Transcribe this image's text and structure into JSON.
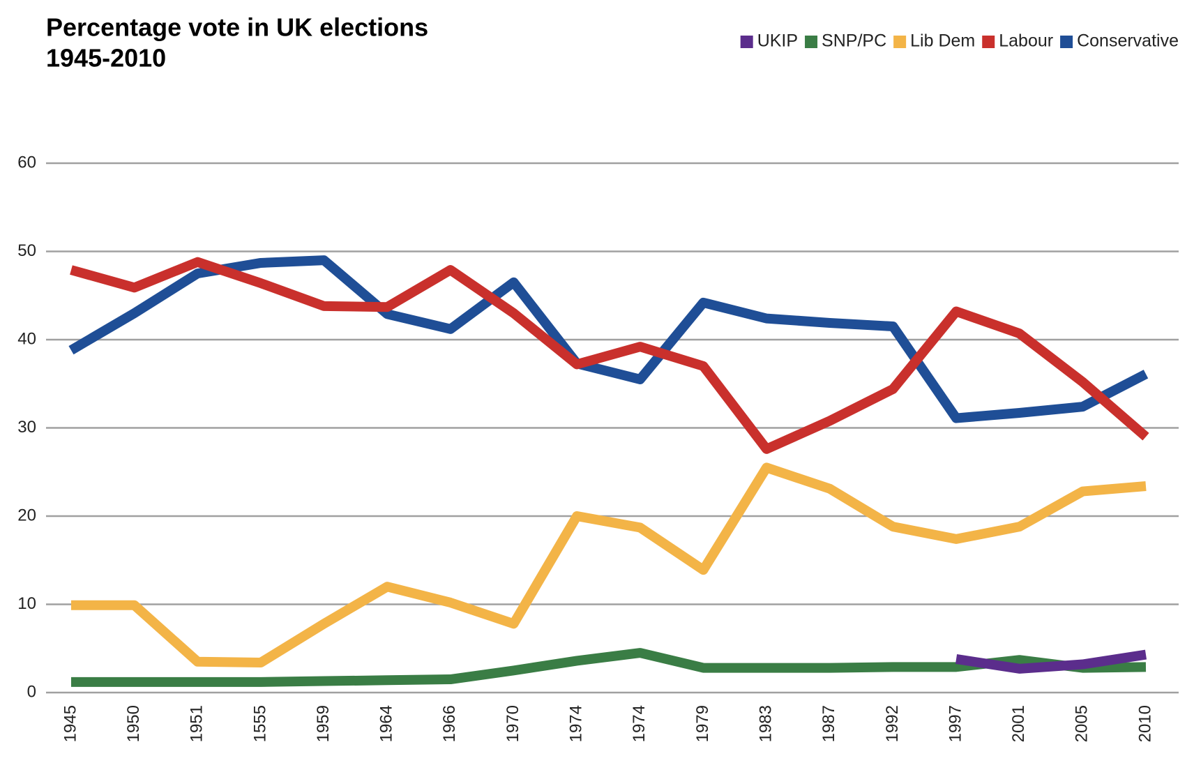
{
  "chart_data": {
    "type": "line",
    "title": "Percentage vote in UK elections",
    "subtitle": "1945-2010",
    "categories": [
      "1945",
      "1950",
      "1951",
      "1555",
      "1959",
      "1964",
      "1966",
      "1970",
      "1974",
      "1974",
      "1979",
      "1983",
      "1987",
      "1992",
      "1997",
      "2001",
      "2005",
      "2010"
    ],
    "series": [
      {
        "name": "UKIP",
        "color": "#5b2d8c",
        "values": [
          null,
          null,
          null,
          null,
          null,
          null,
          null,
          null,
          null,
          null,
          null,
          null,
          null,
          null,
          3.8,
          2.7,
          3.2,
          4.3
        ]
      },
      {
        "name": "SNP/PC",
        "color": "#3a7d45",
        "values": [
          1.2,
          1.2,
          1.2,
          1.2,
          1.3,
          1.4,
          1.5,
          2.5,
          3.6,
          4.5,
          2.8,
          2.8,
          2.8,
          2.9,
          2.9,
          3.7,
          2.8,
          2.9
        ]
      },
      {
        "name": "Lib Dem",
        "color": "#f3b447",
        "values": [
          9.9,
          9.9,
          3.5,
          3.4,
          7.8,
          12.0,
          10.2,
          7.8,
          20.0,
          18.7,
          13.9,
          25.5,
          23.1,
          18.8,
          17.4,
          18.8,
          22.8,
          23.4
        ]
      },
      {
        "name": "Labour",
        "color": "#c9302c",
        "values": [
          47.9,
          45.9,
          48.8,
          46.4,
          43.8,
          43.7,
          47.9,
          43.0,
          37.2,
          39.2,
          37.0,
          27.6,
          30.8,
          34.4,
          43.2,
          40.7,
          35.2,
          29.0
        ]
      },
      {
        "name": "Conservative",
        "color": "#1f4e96",
        "values": [
          38.8,
          43.0,
          47.5,
          48.7,
          49.0,
          42.9,
          41.2,
          46.5,
          37.3,
          35.5,
          44.2,
          42.4,
          41.9,
          41.5,
          31.1,
          31.7,
          32.4,
          36.1
        ]
      }
    ],
    "ylim": [
      0,
      60
    ],
    "yticks": [
      0,
      10,
      20,
      30,
      40,
      50,
      60
    ],
    "grid": true,
    "legend": "top-right"
  }
}
